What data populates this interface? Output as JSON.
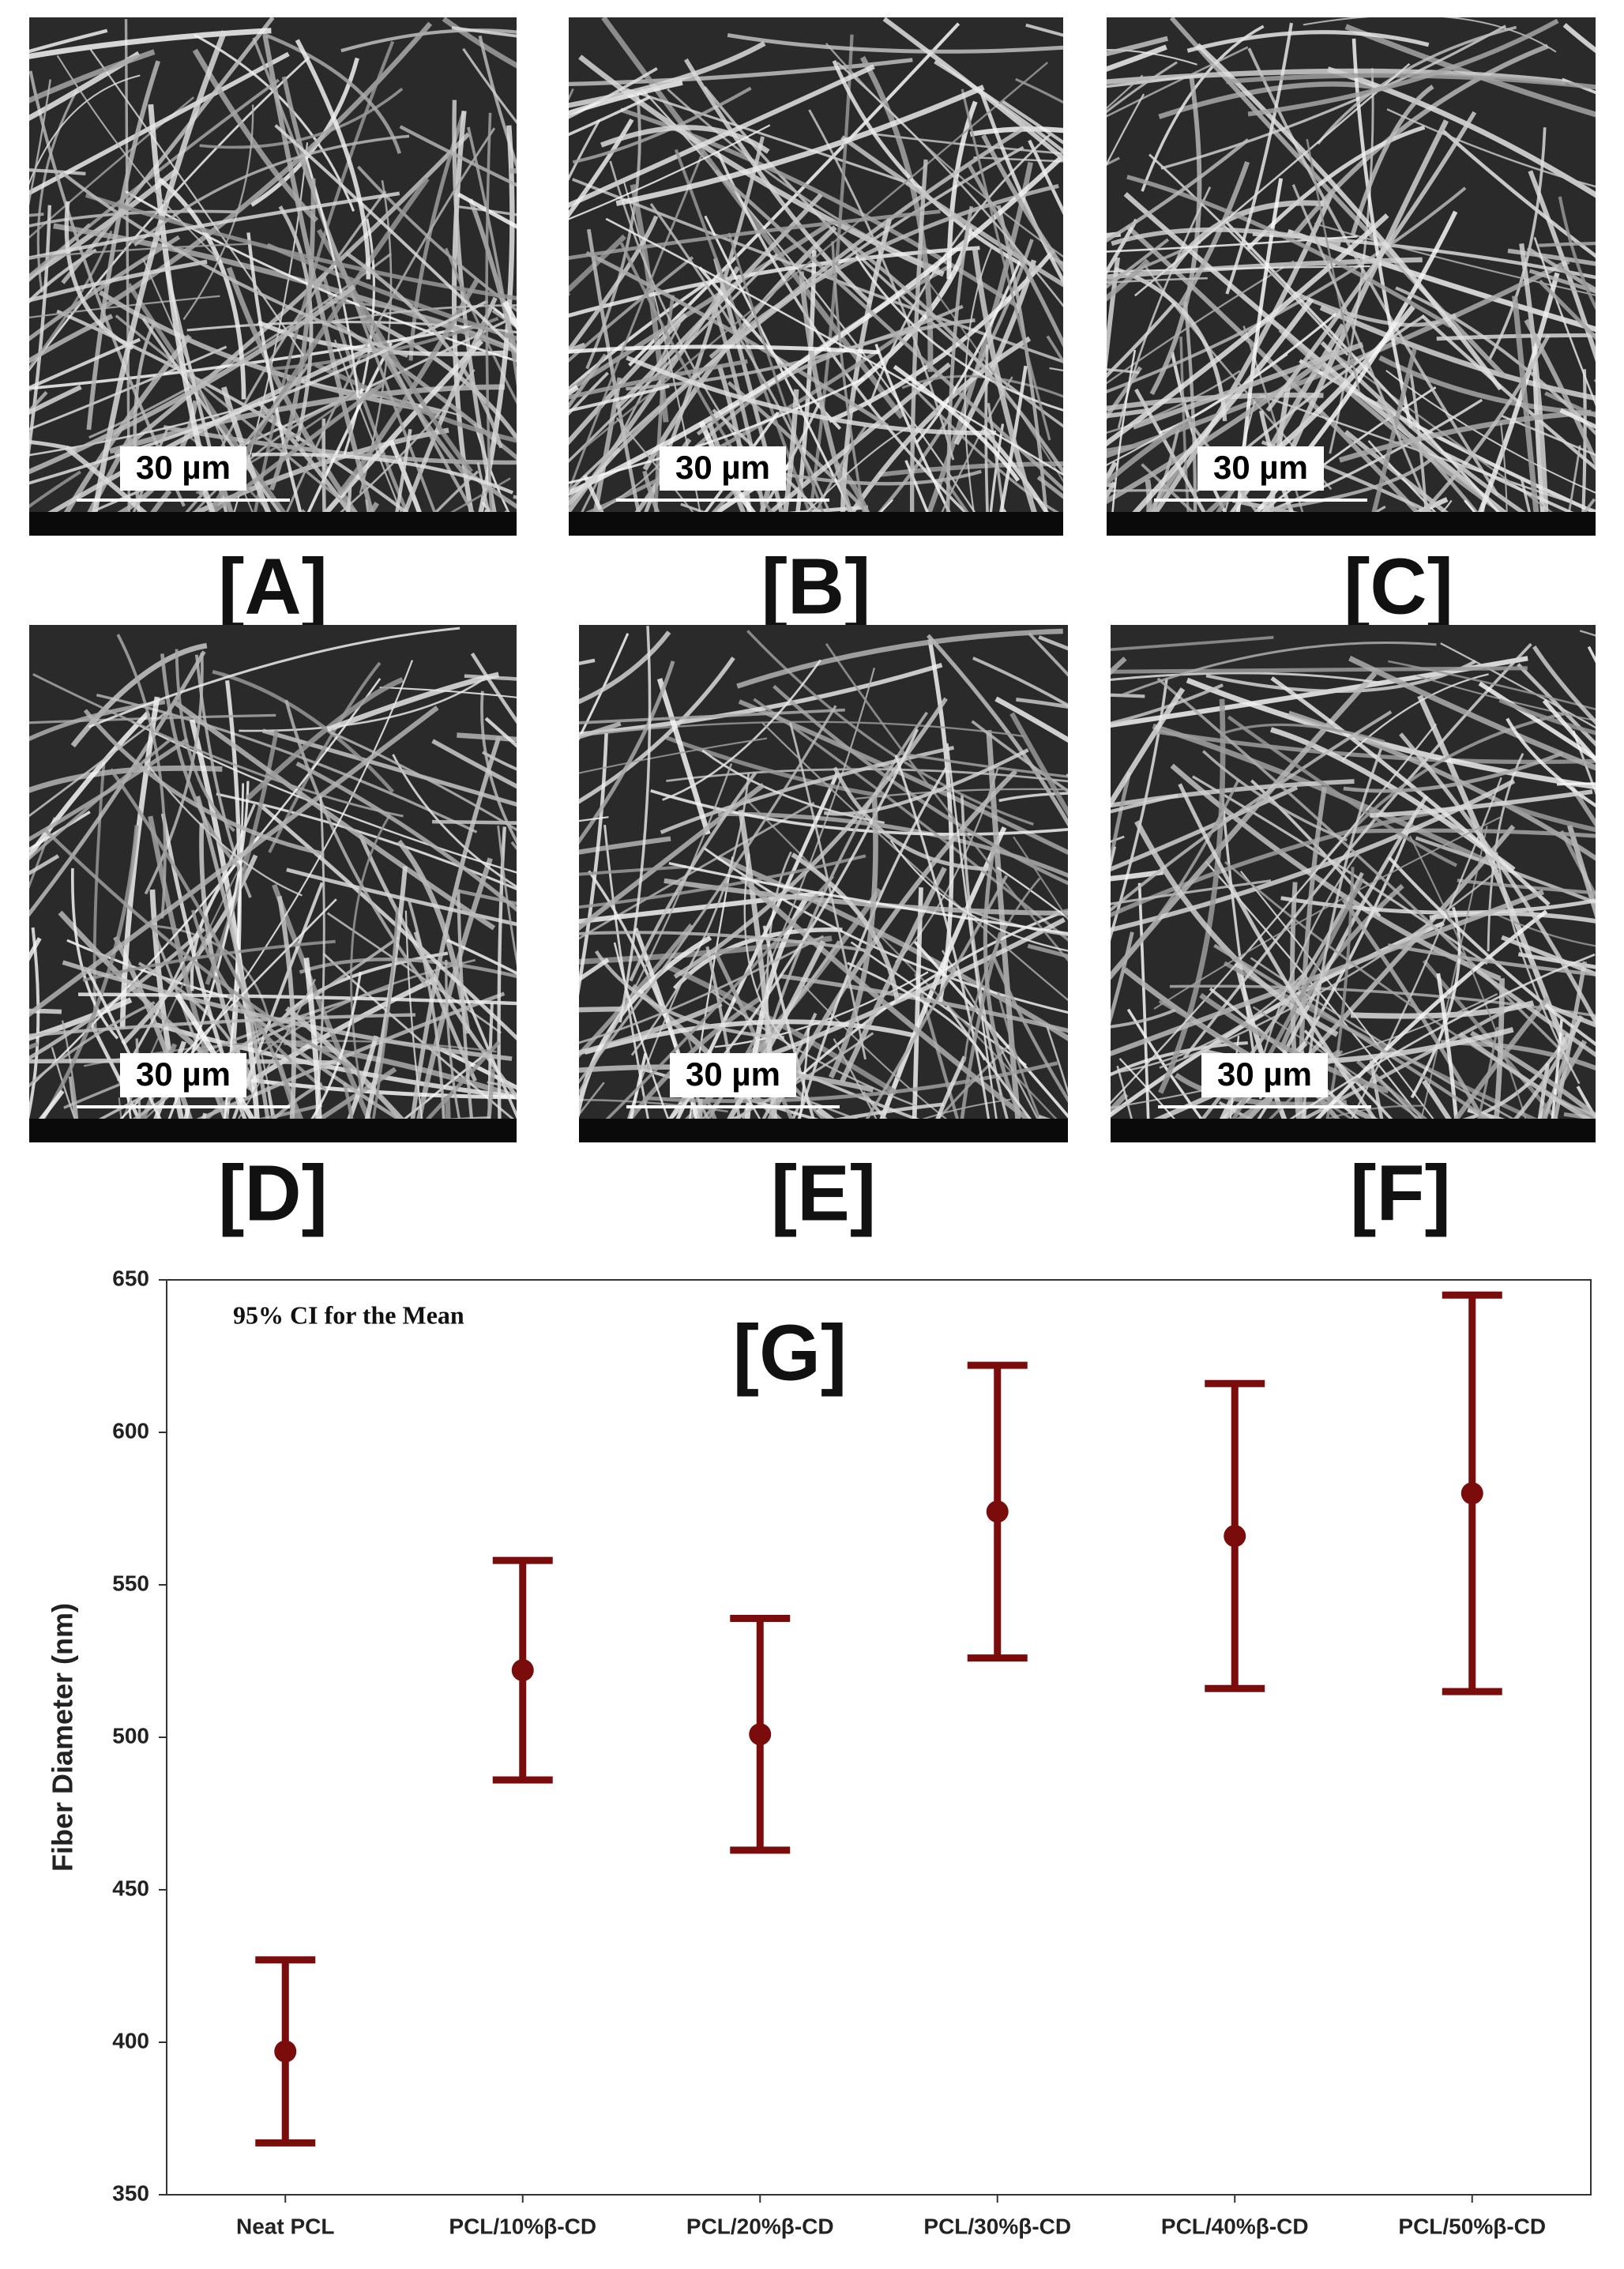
{
  "panels": [
    {
      "label": "[A]",
      "scale_bar": "30 µm"
    },
    {
      "label": "[B]",
      "scale_bar": "30 µm"
    },
    {
      "label": "[C]",
      "scale_bar": "30 µm"
    },
    {
      "label": "[D]",
      "scale_bar": "30 µm"
    },
    {
      "label": "[E]",
      "scale_bar": "30 µm"
    },
    {
      "label": "[F]",
      "scale_bar": "30 µm"
    }
  ],
  "chart_data": {
    "type": "errorbar",
    "panel_label": "[G]",
    "annotation": "95% CI for the Mean",
    "y_label": "Fiber Diameter (nm)",
    "categories": [
      "Neat PCL",
      "PCL/10%β-CD",
      "PCL/20%β-CD",
      "PCL/30%β-CD",
      "PCL/40%β-CD",
      "PCL/50%β-CD"
    ],
    "values": [
      397,
      522,
      501,
      574,
      566,
      580
    ],
    "errors": [
      30,
      36,
      38,
      48,
      50,
      65
    ],
    "color": "#7b0c0c",
    "ylim": [
      350,
      650
    ],
    "yticks": [
      350,
      400,
      450,
      500,
      550,
      600,
      650
    ]
  }
}
